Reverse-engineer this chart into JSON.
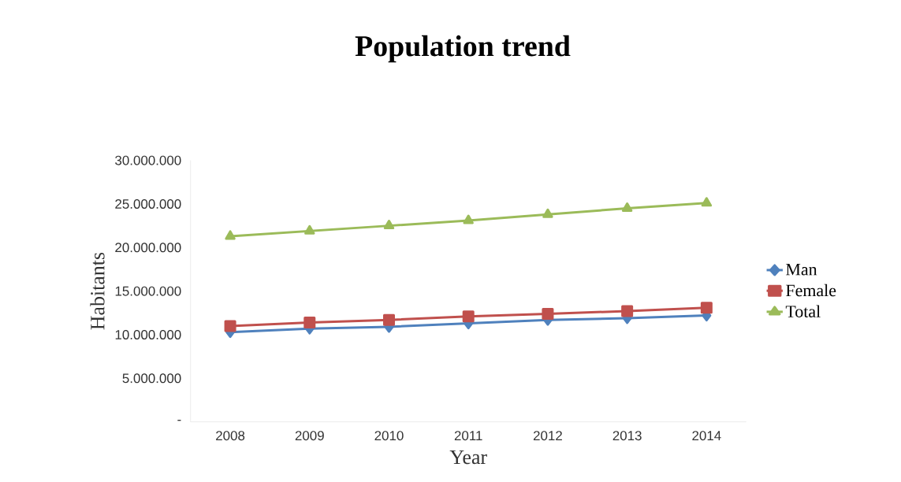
{
  "chart_data": {
    "type": "line",
    "title": "Population trend",
    "xlabel": "Year",
    "ylabel": "Habitants",
    "categories": [
      "2008",
      "2009",
      "2010",
      "2011",
      "2012",
      "2013",
      "2014"
    ],
    "series": [
      {
        "name": "Man",
        "color": "#4f81bd",
        "marker": "diamond",
        "values": [
          10300000,
          10700000,
          10900000,
          11300000,
          11700000,
          11900000,
          12200000
        ]
      },
      {
        "name": "Female",
        "color": "#c0504d",
        "marker": "square",
        "values": [
          11000000,
          11400000,
          11700000,
          12100000,
          12400000,
          12700000,
          13100000
        ]
      },
      {
        "name": "Total",
        "color": "#9bbb59",
        "marker": "triangle",
        "values": [
          21300000,
          21900000,
          22500000,
          23100000,
          23800000,
          24500000,
          25100000
        ]
      }
    ],
    "ylim": [
      0,
      30000000
    ],
    "yticks": [
      {
        "value": 0,
        "label": "-"
      },
      {
        "value": 5000000,
        "label": "5.000.000"
      },
      {
        "value": 10000000,
        "label": "10.000.000"
      },
      {
        "value": 15000000,
        "label": "15.000.000"
      },
      {
        "value": 20000000,
        "label": "20.000.000"
      },
      {
        "value": 25000000,
        "label": "25.000.000"
      },
      {
        "value": 30000000,
        "label": "30.000.000"
      }
    ],
    "grid": false,
    "legend": "right",
    "line_style": "solid"
  }
}
